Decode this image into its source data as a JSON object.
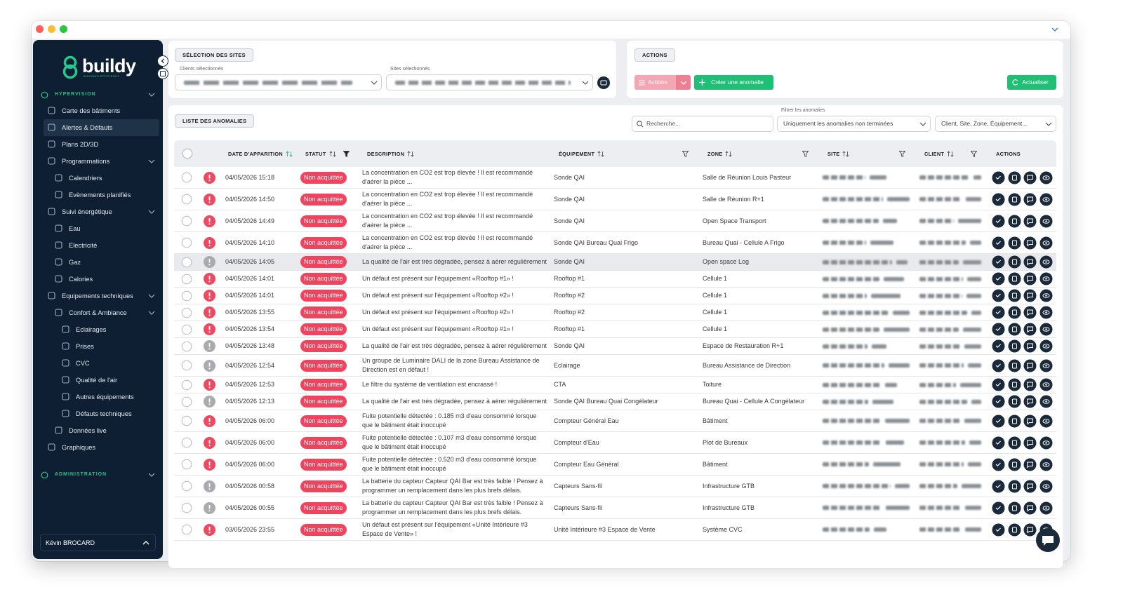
{
  "sidebar": {
    "brand": "buildy",
    "tagline": "BUILDING EFFICIENCY",
    "sections": [
      {
        "title": "HYPERVISION",
        "items": [
          {
            "label": "Carte des bâtiments"
          },
          {
            "label": "Alertes & Défauts",
            "active": true
          },
          {
            "label": "Plans 2D/3D"
          },
          {
            "label": "Programmations",
            "children": [
              {
                "label": "Calendriers"
              },
              {
                "label": "Evènements planifiés"
              }
            ]
          },
          {
            "label": "Suivi énergétique",
            "children": [
              {
                "label": "Eau"
              },
              {
                "label": "Electricité"
              },
              {
                "label": "Gaz"
              },
              {
                "label": "Calories"
              }
            ]
          },
          {
            "label": "Equipements techniques",
            "children": [
              {
                "label": "Confort & Ambiance",
                "children": [
                  {
                    "label": "Eclairages"
                  },
                  {
                    "label": "Prises"
                  },
                  {
                    "label": "CVC"
                  },
                  {
                    "label": "Qualité de l'air"
                  },
                  {
                    "label": "Autres équipements"
                  },
                  {
                    "label": "Défauts techniques"
                  }
                ]
              },
              {
                "label": "Données live"
              }
            ]
          },
          {
            "label": "Graphiques"
          }
        ]
      },
      {
        "title": "ADMINISTRATION",
        "items": []
      }
    ],
    "user": "Kévin BROCARD"
  },
  "site_selection": {
    "title": "SÉLECTION DES SITES",
    "clients_label": "Clients sélectionnés",
    "sites_label": "Sites sélectionnés"
  },
  "actions_panel": {
    "title": "ACTIONS",
    "actions_button": "Actions",
    "create_button": "Créer une anomalie",
    "refresh_button": "Actualiser"
  },
  "anomalies": {
    "title": "LISTE DES ANOMALIES",
    "search_placeholder": "Recherche...",
    "filter_label": "Filtrer les anomalies",
    "filter_value": "Uniquement les anomalies non terminées",
    "scope_placeholder": "Client, Site, Zone, Équipement...",
    "columns": [
      "DATE D'APPARITION",
      "STATUT",
      "DESCRIPTION",
      "ÉQUIPEMENT",
      "ZONE",
      "SITE",
      "CLIENT",
      "ACTIONS"
    ],
    "rows": [
      {
        "severity_color": "#ec4a60",
        "date": "04/05/2026 15:18",
        "status": "Non acquittée",
        "description": "La concentration en CO2 est trop élevée ! Il est recommandé d'aérer la pièce ...",
        "equipment": "Sonde QAI",
        "zone": "Salle de Réunion Louis Pasteur"
      },
      {
        "severity_color": "#ec4a60",
        "date": "04/05/2026 14:50",
        "status": "Non acquittée",
        "description": "La concentration en CO2 est trop élevée ! Il est recommandé d'aérer la pièce ...",
        "equipment": "Sonde QAI",
        "zone": "Salle de Réunion R+1"
      },
      {
        "severity_color": "#ec4a60",
        "date": "04/05/2026 14:49",
        "status": "Non acquittée",
        "description": "La concentration en CO2 est trop élevée ! Il est recommandé d'aérer la pièce ...",
        "equipment": "Sonde QAI",
        "zone": "Open Space Transport"
      },
      {
        "severity_color": "#ec4a60",
        "date": "04/05/2026 14:10",
        "status": "Non acquittée",
        "description": "La concentration en CO2 est trop élevée ! Il est recommandé d'aérer la pièce ...",
        "equipment": "Sonde QAI Bureau Quai Frigo",
        "zone": "Bureau Quai - Cellule A Frigo"
      },
      {
        "severity_color": "#a9abae",
        "date": "04/05/2026 14:05",
        "status": "Non acquittée",
        "description": "La qualité de l'air est très dégradée, pensez à aérer régulièrement",
        "equipment": "Sonde QAI",
        "zone": "Open space Log",
        "highlighted": true
      },
      {
        "severity_color": "#ec4a60",
        "date": "04/05/2026 14:01",
        "status": "Non acquittée",
        "description": "Un défaut est présent sur l'équipement «Rooftop #1» !",
        "equipment": "Rooftop #1",
        "zone": "Cellule 1"
      },
      {
        "severity_color": "#ec4a60",
        "date": "04/05/2026 14:01",
        "status": "Non acquittée",
        "description": "Un défaut est présent sur l'équipement «Rooftop #2» !",
        "equipment": "Rooftop #2",
        "zone": "Cellule 1"
      },
      {
        "severity_color": "#ec4a60",
        "date": "04/05/2026 13:55",
        "status": "Non acquittée",
        "description": "Un défaut est présent sur l'équipement «Rooftop #2» !",
        "equipment": "Rooftop #2",
        "zone": "Cellule 1"
      },
      {
        "severity_color": "#ec4a60",
        "date": "04/05/2026 13:54",
        "status": "Non acquittée",
        "description": "Un défaut est présent sur l'équipement «Rooftop #1» !",
        "equipment": "Rooftop #1",
        "zone": "Cellule 1"
      },
      {
        "severity_color": "#a9abae",
        "date": "04/05/2026 13:48",
        "status": "Non acquittée",
        "description": "La qualité de l'air est très dégradée, pensez à aérer régulièrement",
        "equipment": "Sonde QAI",
        "zone": "Espace de Restauration R+1"
      },
      {
        "severity_color": "#a9abae",
        "date": "04/05/2026 12:54",
        "status": "Non acquittée",
        "description": "Un groupe de Luminaire DALI de la zone Bureau Assistance de Direction est en défaut !",
        "equipment": "Eclairage",
        "zone": "Bureau Assistance de Direction"
      },
      {
        "severity_color": "#ec4a60",
        "date": "04/05/2026 12:53",
        "status": "Non acquittée",
        "description": "Le filtre du système de ventilation est encrassé !",
        "equipment": "CTA",
        "zone": "Toiture"
      },
      {
        "severity_color": "#a9abae",
        "date": "04/05/2026 12:13",
        "status": "Non acquittée",
        "description": "La qualité de l'air est très dégradée, pensez à aérer régulièrement",
        "equipment": "Sonde QAI Bureau Quai Congélateur",
        "zone": "Bureau Quai - Cellule A Congélateur"
      },
      {
        "severity_color": "#ec4a60",
        "date": "04/05/2026 06:00",
        "status": "Non acquittée",
        "description": "Fuite potentielle détectée : 0.185 m3 d'eau consommé lorsque que le bâtiment était inoccupé",
        "equipment": "Compteur Général Eau",
        "zone": "Bâtiment"
      },
      {
        "severity_color": "#ec4a60",
        "date": "04/05/2026 06:00",
        "status": "Non acquittée",
        "description": "Fuite potentielle détectée : 0.107 m3 d'eau consommé lorsque que le bâtiment était inoccupé",
        "equipment": "Compteur d'Eau",
        "zone": "Plot de Bureaux"
      },
      {
        "severity_color": "#ec4a60",
        "date": "04/05/2026 06:00",
        "status": "Non acquittée",
        "description": "Fuite potentielle détectée : 0.520 m3 d'eau consommé lorsque que le bâtiment était inoccupé",
        "equipment": "Compteur Eau Général",
        "zone": "Bâtiment"
      },
      {
        "severity_color": "#a9abae",
        "date": "04/05/2026 00:58",
        "status": "Non acquittée",
        "description": "La batterie du capteur Capteur QAI Bar est très faible ! Pensez à programmer un remplacement dans les plus brefs délais.",
        "equipment": "Capteurs Sans-fil",
        "zone": "Infrastructure GTB"
      },
      {
        "severity_color": "#a9abae",
        "date": "04/05/2026 00:55",
        "status": "Non acquittée",
        "description": "La batterie du capteur Capteur QAI Bar est très faible ! Pensez à programmer un remplacement dans les plus brefs délais.",
        "equipment": "Capteurs Sans-fil",
        "zone": "Infrastructure GTB"
      },
      {
        "severity_color": "#ec4a60",
        "date": "03/05/2026 23:55",
        "status": "Non acquittée",
        "description": "Un défaut est présent sur l'équipement «Unité Intérieure #3 Espace de Vente» !",
        "equipment": "Unité Intérieure #3 Espace de Vente",
        "zone": "Système CVC"
      }
    ]
  }
}
